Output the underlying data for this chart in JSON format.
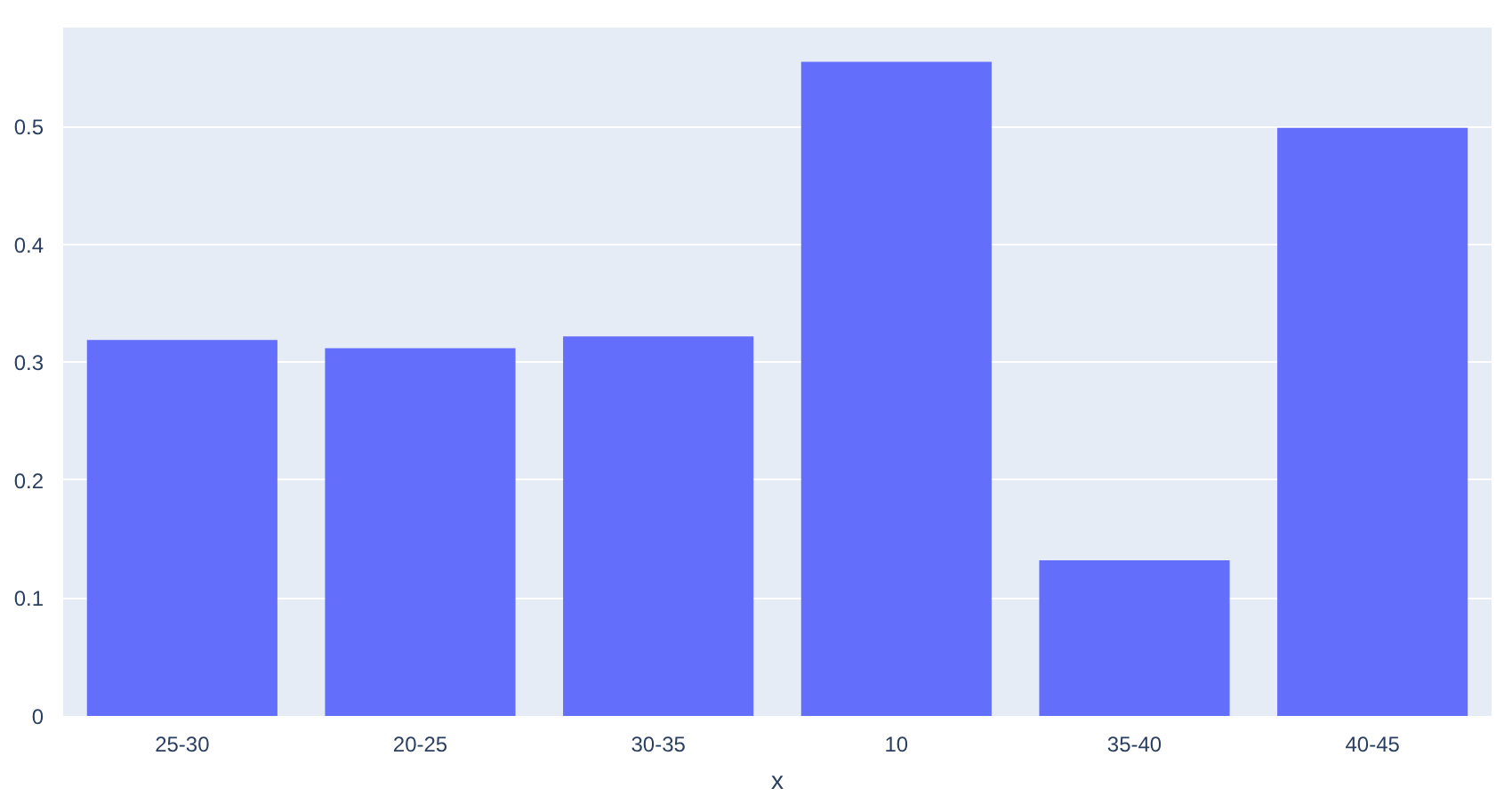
{
  "chart_data": {
    "type": "bar",
    "xlabel": "x",
    "categories": [
      "25-30",
      "20-25",
      "30-35",
      "10",
      "35-40",
      "40-45"
    ],
    "values": [
      0.319,
      0.312,
      0.322,
      0.555,
      0.132,
      0.499
    ],
    "color": "#636efa",
    "ylim": [
      0,
      0.584
    ],
    "yticks": [
      0,
      0.1,
      0.2,
      0.3,
      0.4,
      0.5
    ],
    "grid": "y"
  }
}
